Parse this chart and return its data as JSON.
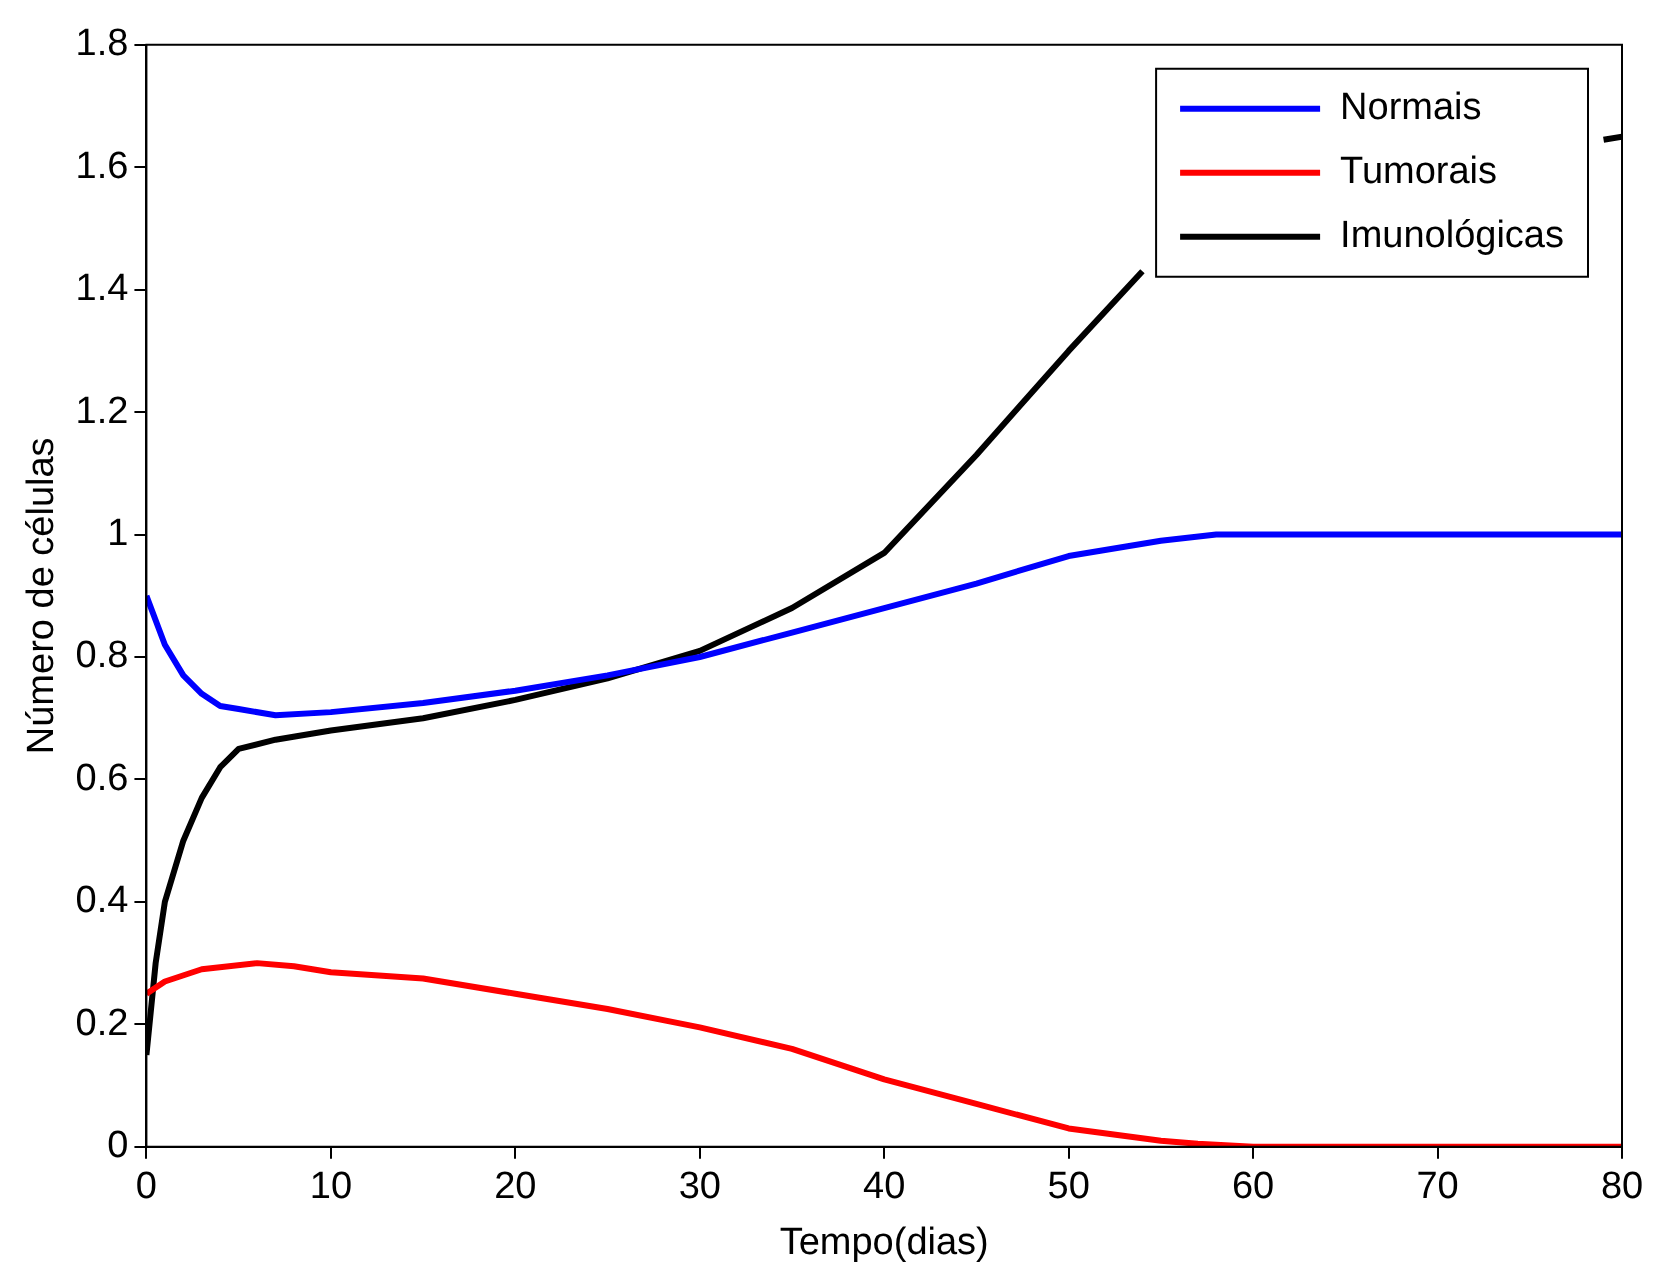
{
  "chart_data": {
    "type": "line",
    "xlabel": "Tempo(dias)",
    "ylabel": "Número de células",
    "xlim": [
      0,
      80
    ],
    "xticks": [
      0,
      10,
      20,
      30,
      40,
      50,
      60,
      70,
      80
    ],
    "ylim": [
      0,
      1.8
    ],
    "yticks": [
      0,
      0.2,
      0.4,
      0.6,
      0.8,
      1,
      1.2,
      1.4,
      1.6,
      1.8
    ],
    "grid": false,
    "legend": "top right",
    "marker": "none",
    "line_style": "solid",
    "series": [
      {
        "name": "Normais",
        "color": "#0000ff",
        "x": [
          0,
          1,
          2,
          3,
          4,
          5,
          7,
          10,
          15,
          20,
          25,
          30,
          35,
          40,
          45,
          50,
          55,
          58,
          80
        ],
        "values": [
          0.9,
          0.82,
          0.77,
          0.74,
          0.72,
          0.715,
          0.705,
          0.71,
          0.725,
          0.745,
          0.77,
          0.8,
          0.84,
          0.88,
          0.92,
          0.965,
          0.99,
          1.0,
          1.0
        ]
      },
      {
        "name": "Tumorais",
        "color": "#ff0000",
        "x": [
          0,
          1,
          3,
          6,
          8,
          10,
          15,
          20,
          25,
          30,
          35,
          40,
          45,
          50,
          55,
          57,
          60,
          80
        ],
        "values": [
          0.25,
          0.27,
          0.29,
          0.3,
          0.295,
          0.285,
          0.275,
          0.25,
          0.225,
          0.195,
          0.16,
          0.11,
          0.07,
          0.03,
          0.01,
          0.005,
          0,
          0
        ]
      },
      {
        "name": "Imunológicas",
        "color": "#000000",
        "x": [
          0,
          0.5,
          1,
          2,
          3,
          4,
          5,
          7,
          10,
          15,
          20,
          25,
          30,
          35,
          40,
          45,
          50,
          54,
          55,
          79,
          80
        ],
        "values": [
          0.15,
          0.3,
          0.4,
          0.5,
          0.57,
          0.62,
          0.65,
          0.665,
          0.68,
          0.7,
          0.73,
          0.765,
          0.81,
          0.88,
          0.97,
          1.13,
          1.3,
          1.43,
          null,
          1.645,
          1.65
        ]
      }
    ]
  }
}
